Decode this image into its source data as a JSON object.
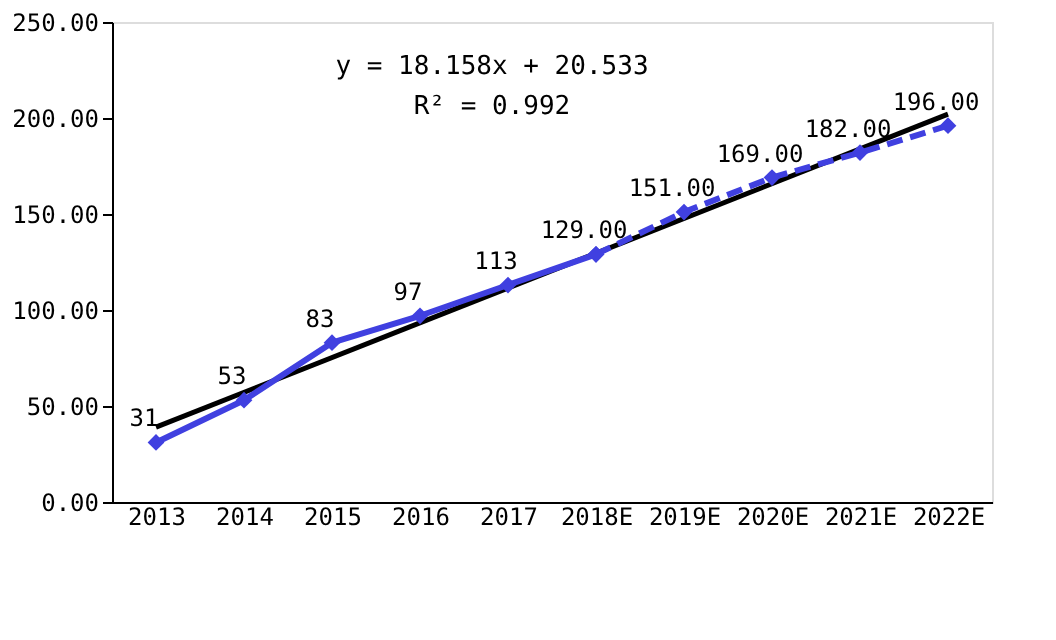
{
  "chart_data": {
    "type": "line",
    "categories": [
      "2013",
      "2014",
      "2015",
      "2016",
      "2017",
      "2018E",
      "2019E",
      "2020E",
      "2021E",
      "2022E"
    ],
    "series": [
      {
        "type": "line",
        "color": "#000000",
        "values": [
          39,
          null,
          null,
          null,
          null,
          null,
          null,
          null,
          null,
          202
        ],
        "line_style": "solid",
        "marker": "none"
      },
      {
        "color": "#4040e0",
        "values": [
          31,
          53,
          83,
          97,
          113,
          129,
          null,
          null,
          null,
          null
        ],
        "value_labels": [
          "31",
          "53",
          "83",
          "97",
          "113",
          "129.00",
          null,
          null,
          null,
          null
        ],
        "line_style": "solid",
        "marker": "diamond"
      },
      {
        "color": "#4040e0",
        "values": [
          null,
          null,
          null,
          null,
          null,
          129,
          151,
          169,
          182,
          196
        ],
        "value_labels": [
          null,
          null,
          null,
          null,
          null,
          null,
          "151.00",
          "169.00",
          "182.00",
          "196.00"
        ],
        "line_style": "dashed",
        "marker": "diamond"
      }
    ],
    "ylim": [
      0,
      250
    ],
    "yticks": [
      {
        "value": 0,
        "label": "0.00"
      },
      {
        "value": 50,
        "label": "50.00"
      },
      {
        "value": 100,
        "label": "100.00"
      },
      {
        "value": 150,
        "label": "150.00"
      },
      {
        "value": 200,
        "label": "200.00"
      },
      {
        "value": 250,
        "label": "250.00"
      }
    ],
    "grid": false,
    "annotations": [
      "y = 18.158x + 20.533",
      "R² = 0.992"
    ]
  }
}
